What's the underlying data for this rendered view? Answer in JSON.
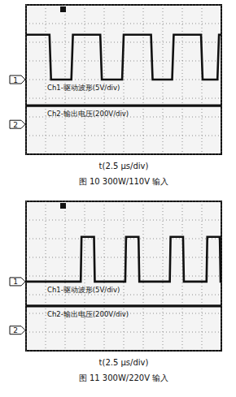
{
  "chart_data": [
    {
      "type": "line",
      "title": "图 10 300W/110V 输入",
      "x_label": "t(2.5 μs/div)",
      "xlim": [
        0,
        25
      ],
      "xticks": [
        0,
        2.5,
        5,
        7.5,
        10,
        12.5,
        15,
        17.5,
        20,
        22.5,
        25
      ],
      "ylim": [
        -4,
        4
      ],
      "yticks": [
        -4,
        -3,
        -2,
        -1,
        0,
        1,
        2,
        3,
        4
      ],
      "grid": true,
      "tick_labels": false,
      "channel_markers": [
        {
          "label": "1",
          "value": 0
        },
        {
          "label": "2",
          "value": -2.4
        }
      ],
      "series": [
        {
          "name": "Ch1-驱动波形(5V/div)",
          "color": "#111111",
          "x": [
            0,
            3.0,
            3.2,
            5.8,
            6.0,
            9.5,
            9.7,
            12.3,
            12.5,
            16.0,
            16.2,
            18.7,
            18.9,
            22.4,
            22.6,
            24.5,
            24.7,
            25
          ],
          "values": [
            2.4,
            2.4,
            0,
            0,
            2.4,
            2.4,
            0,
            0,
            2.4,
            2.4,
            0,
            0,
            2.4,
            2.4,
            0,
            0,
            2.4,
            2.4
          ]
        },
        {
          "name": "Ch2-输出电压(200V/div)",
          "color": "#111111",
          "x": [
            0,
            25
          ],
          "values": [
            -1.4,
            -1.4
          ]
        }
      ]
    },
    {
      "type": "line",
      "title": "图 11 300W/220V 输入",
      "x_label": "t(2.5 μs/div)",
      "xlim": [
        0,
        25
      ],
      "xticks": [
        0,
        2.5,
        5,
        7.5,
        10,
        12.5,
        15,
        17.5,
        20,
        22.5,
        25
      ],
      "ylim": [
        -4,
        4
      ],
      "yticks": [
        -4,
        -3,
        -2,
        -1,
        0,
        1,
        2,
        3,
        4
      ],
      "grid": true,
      "tick_labels": false,
      "channel_markers": [
        {
          "label": "1",
          "value": -0.3
        },
        {
          "label": "2",
          "value": -2.9
        }
      ],
      "series": [
        {
          "name": "Ch1-驱动波形(5V/div)",
          "color": "#111111",
          "x": [
            0,
            7.0,
            7.1,
            8.7,
            8.8,
            12.7,
            12.8,
            14.4,
            14.5,
            18.4,
            18.5,
            20.1,
            20.2,
            23.1,
            23.2,
            24.8,
            24.9,
            25
          ],
          "values": [
            -0.3,
            -0.3,
            2.1,
            2.1,
            -0.3,
            -0.3,
            2.1,
            2.1,
            -0.3,
            -0.3,
            2.1,
            2.1,
            -0.3,
            -0.3,
            2.1,
            2.1,
            -0.3,
            -0.3
          ]
        },
        {
          "name": "Ch2-输出电压(200V/div)",
          "color": "#111111",
          "x": [
            0,
            25
          ],
          "values": [
            -1.6,
            -1.6
          ]
        }
      ]
    }
  ]
}
